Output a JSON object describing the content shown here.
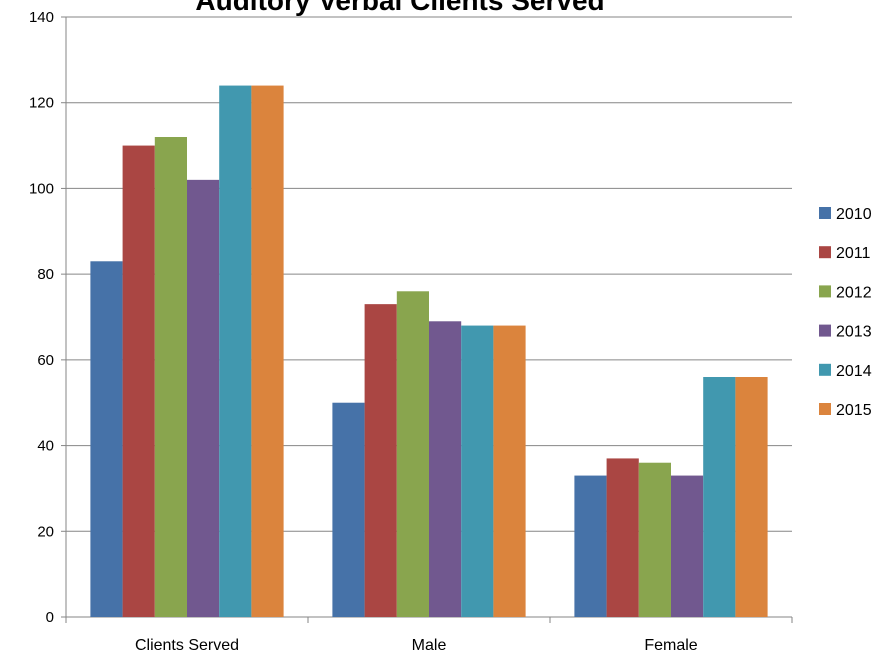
{
  "chart_data": {
    "type": "bar",
    "title": "Auditory Verbal Clients Served",
    "xlabel": "",
    "ylabel": "",
    "ylim": [
      0,
      140
    ],
    "yticks": [
      0,
      20,
      40,
      60,
      80,
      100,
      120,
      140
    ],
    "grid": true,
    "legend_position": "right",
    "categories": [
      "Clients Served",
      "Male",
      "Female"
    ],
    "series": [
      {
        "name": "2010",
        "color": "#4672A8",
        "values": [
          83,
          50,
          33
        ]
      },
      {
        "name": "2011",
        "color": "#AA4643",
        "values": [
          110,
          73,
          37
        ]
      },
      {
        "name": "2012",
        "color": "#89A54E",
        "values": [
          112,
          76,
          36
        ]
      },
      {
        "name": "2013",
        "color": "#71588F",
        "values": [
          102,
          69,
          33
        ]
      },
      {
        "name": "2014",
        "color": "#4198AF",
        "values": [
          124,
          68,
          56
        ]
      },
      {
        "name": "2015",
        "color": "#DB843D",
        "values": [
          124,
          68,
          56
        ]
      }
    ]
  }
}
